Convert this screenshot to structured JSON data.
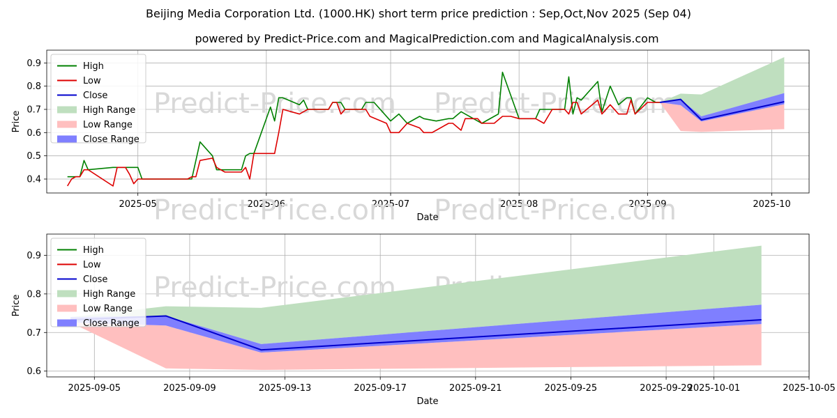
{
  "title_line1": "Beijing Media Corporation Ltd. (1000.HK) short term price prediction : Sep,Oct,Nov 2025 (Sep 04)",
  "title_line2": "powered by Predict-Price.com and MagicalPrediction.com and MagicalAnalysis.com",
  "watermark": "Predict-Price.com",
  "colors": {
    "high": "#008000",
    "low": "#dd0000",
    "close": "#0000cc",
    "high_range": "#bfdfbf",
    "low_range": "#ffbfbf",
    "close_range": "#7f7fff"
  },
  "chart_data": [
    {
      "type": "line",
      "xlabel": "Date",
      "ylabel": "Price",
      "xlim": [
        "2025-04-09",
        "2025-10-10"
      ],
      "ylim": [
        0.34,
        0.955
      ],
      "x_ticks": [
        "2025-05",
        "2025-06",
        "2025-07",
        "2025-08",
        "2025-09",
        "2025-10"
      ],
      "y_ticks": [
        "0.4",
        "0.5",
        "0.6",
        "0.7",
        "0.8",
        "0.9"
      ],
      "grid": true,
      "legend": "top-left",
      "legend_entries": [
        "High",
        "Low",
        "Close",
        "High Range",
        "Low Range",
        "Close Range"
      ],
      "series": [
        {
          "name": "High",
          "x": [
            "2025-04-14",
            "2025-04-17",
            "2025-04-18",
            "2025-04-19",
            "2025-04-25",
            "2025-04-26",
            "2025-04-30",
            "2025-05-01",
            "2025-05-02",
            "2025-05-13",
            "2025-05-14",
            "2025-05-16",
            "2025-05-19",
            "2025-05-20",
            "2025-05-21",
            "2025-05-26",
            "2025-05-27",
            "2025-05-28",
            "2025-05-29",
            "2025-06-02",
            "2025-06-03",
            "2025-06-04",
            "2025-06-05",
            "2025-06-09",
            "2025-06-10",
            "2025-06-11",
            "2025-06-16",
            "2025-06-17",
            "2025-06-19",
            "2025-06-20",
            "2025-06-24",
            "2025-06-25",
            "2025-06-27",
            "2025-07-01",
            "2025-07-03",
            "2025-07-05",
            "2025-07-08",
            "2025-07-09",
            "2025-07-12",
            "2025-07-15",
            "2025-07-16",
            "2025-07-18",
            "2025-07-22",
            "2025-07-23",
            "2025-07-26",
            "2025-07-27",
            "2025-07-28",
            "2025-08-01",
            "2025-08-02",
            "2025-08-05",
            "2025-08-06",
            "2025-08-07",
            "2025-08-09",
            "2025-08-12",
            "2025-08-13",
            "2025-08-14",
            "2025-08-15",
            "2025-08-16",
            "2025-08-20",
            "2025-08-21",
            "2025-08-23",
            "2025-08-25",
            "2025-08-27",
            "2025-08-28",
            "2025-08-29",
            "2025-09-01",
            "2025-09-02",
            "2025-09-03",
            "2025-09-04"
          ],
          "y": [
            0.41,
            0.41,
            0.48,
            0.44,
            0.45,
            0.45,
            0.45,
            0.45,
            0.4,
            0.4,
            0.4,
            0.56,
            0.5,
            0.44,
            0.44,
            0.44,
            0.5,
            0.51,
            0.51,
            0.71,
            0.65,
            0.75,
            0.75,
            0.72,
            0.74,
            0.7,
            0.7,
            0.73,
            0.73,
            0.7,
            0.7,
            0.73,
            0.73,
            0.65,
            0.68,
            0.64,
            0.67,
            0.66,
            0.65,
            0.66,
            0.66,
            0.69,
            0.65,
            0.64,
            0.67,
            0.68,
            0.86,
            0.66,
            0.66,
            0.66,
            0.7,
            0.7,
            0.7,
            0.7,
            0.84,
            0.68,
            0.75,
            0.74,
            0.82,
            0.69,
            0.8,
            0.72,
            0.75,
            0.75,
            0.68,
            0.75,
            0.74,
            0.73,
            0.73
          ]
        },
        {
          "name": "Low",
          "x": [
            "2025-04-14",
            "2025-04-15",
            "2025-04-16",
            "2025-04-17",
            "2025-04-18",
            "2025-04-19",
            "2025-04-25",
            "2025-04-26",
            "2025-04-28",
            "2025-04-29",
            "2025-04-30",
            "2025-05-01",
            "2025-05-13",
            "2025-05-14",
            "2025-05-15",
            "2025-05-16",
            "2025-05-19",
            "2025-05-20",
            "2025-05-21",
            "2025-05-22",
            "2025-05-26",
            "2025-05-27",
            "2025-05-28",
            "2025-05-29",
            "2025-06-02",
            "2025-06-03",
            "2025-06-04",
            "2025-06-05",
            "2025-06-09",
            "2025-06-10",
            "2025-06-11",
            "2025-06-16",
            "2025-06-17",
            "2025-06-18",
            "2025-06-19",
            "2025-06-20",
            "2025-06-24",
            "2025-06-25",
            "2025-06-26",
            "2025-06-30",
            "2025-07-01",
            "2025-07-03",
            "2025-07-05",
            "2025-07-08",
            "2025-07-09",
            "2025-07-11",
            "2025-07-12",
            "2025-07-15",
            "2025-07-16",
            "2025-07-18",
            "2025-07-19",
            "2025-07-21",
            "2025-07-22",
            "2025-07-23",
            "2025-07-25",
            "2025-07-26",
            "2025-07-28",
            "2025-07-30",
            "2025-08-01",
            "2025-08-02",
            "2025-08-05",
            "2025-08-07",
            "2025-08-09",
            "2025-08-12",
            "2025-08-13",
            "2025-08-14",
            "2025-08-15",
            "2025-08-16",
            "2025-08-20",
            "2025-08-21",
            "2025-08-23",
            "2025-08-25",
            "2025-08-27",
            "2025-08-28",
            "2025-08-29",
            "2025-09-01",
            "2025-09-02",
            "2025-09-03",
            "2025-09-04"
          ],
          "y": [
            0.37,
            0.4,
            0.41,
            0.41,
            0.44,
            0.44,
            0.37,
            0.45,
            0.45,
            0.42,
            0.38,
            0.4,
            0.4,
            0.41,
            0.41,
            0.48,
            0.49,
            0.45,
            0.44,
            0.43,
            0.43,
            0.45,
            0.4,
            0.51,
            0.51,
            0.51,
            0.6,
            0.7,
            0.68,
            0.69,
            0.7,
            0.7,
            0.73,
            0.73,
            0.68,
            0.7,
            0.7,
            0.7,
            0.67,
            0.64,
            0.6,
            0.6,
            0.64,
            0.62,
            0.6,
            0.6,
            0.61,
            0.64,
            0.64,
            0.61,
            0.66,
            0.66,
            0.66,
            0.64,
            0.64,
            0.64,
            0.67,
            0.67,
            0.66,
            0.66,
            0.66,
            0.64,
            0.7,
            0.7,
            0.68,
            0.73,
            0.73,
            0.68,
            0.74,
            0.68,
            0.72,
            0.68,
            0.68,
            0.74,
            0.68,
            0.73,
            0.73,
            0.73,
            0.73
          ]
        },
        {
          "name": "Close",
          "x": [
            "2025-09-04",
            "2025-09-09",
            "2025-09-14",
            "2025-10-04"
          ],
          "y": [
            0.73,
            0.743,
            0.655,
            0.733
          ]
        },
        {
          "name": "High Range",
          "x": [
            "2025-09-04",
            "2025-09-09",
            "2025-09-14",
            "2025-10-04"
          ],
          "upper": [
            0.73,
            0.768,
            0.764,
            0.925
          ],
          "lower": [
            0.73,
            0.743,
            0.67,
            0.77
          ]
        },
        {
          "name": "Low Range",
          "x": [
            "2025-09-04",
            "2025-09-09",
            "2025-09-14",
            "2025-10-04"
          ],
          "upper": [
            0.73,
            0.718,
            0.648,
            0.722
          ],
          "lower": [
            0.73,
            0.607,
            0.603,
            0.615
          ]
        },
        {
          "name": "Close Range",
          "x": [
            "2025-09-04",
            "2025-09-09",
            "2025-09-14",
            "2025-10-04"
          ],
          "upper": [
            0.73,
            0.743,
            0.67,
            0.77
          ],
          "lower": [
            0.73,
            0.718,
            0.648,
            0.722
          ]
        }
      ]
    },
    {
      "type": "line",
      "xlabel": "Date",
      "ylabel": "Price",
      "xlim": [
        "2025-09-03",
        "2025-10-05"
      ],
      "ylim": [
        0.585,
        0.955
      ],
      "x_ticks": [
        "2025-09-05",
        "2025-09-09",
        "2025-09-13",
        "2025-09-17",
        "2025-09-21",
        "2025-09-25",
        "2025-09-29",
        "2025-10-01",
        "2025-10-05"
      ],
      "y_ticks": [
        "0.6",
        "0.7",
        "0.8",
        "0.9"
      ],
      "grid": true,
      "legend": "top-left",
      "legend_entries": [
        "High",
        "Low",
        "Close",
        "High Range",
        "Low Range",
        "Close Range"
      ],
      "series": [
        {
          "name": "Close",
          "x": [
            "2025-09-04",
            "2025-09-08",
            "2025-09-12",
            "2025-10-03"
          ],
          "y": [
            0.733,
            0.743,
            0.655,
            0.733
          ]
        },
        {
          "name": "High Range",
          "x": [
            "2025-09-04",
            "2025-09-08",
            "2025-09-12",
            "2025-10-03"
          ],
          "upper": [
            0.74,
            0.768,
            0.764,
            0.925
          ],
          "lower": [
            0.733,
            0.743,
            0.67,
            0.772
          ]
        },
        {
          "name": "Low Range",
          "x": [
            "2025-09-04",
            "2025-09-08",
            "2025-09-12",
            "2025-10-03"
          ],
          "upper": [
            0.726,
            0.718,
            0.648,
            0.722
          ],
          "lower": [
            0.726,
            0.607,
            0.603,
            0.615
          ]
        },
        {
          "name": "Close Range",
          "x": [
            "2025-09-04",
            "2025-09-08",
            "2025-09-12",
            "2025-10-03"
          ],
          "upper": [
            0.74,
            0.743,
            0.67,
            0.772
          ],
          "lower": [
            0.726,
            0.718,
            0.648,
            0.722
          ]
        }
      ]
    }
  ]
}
